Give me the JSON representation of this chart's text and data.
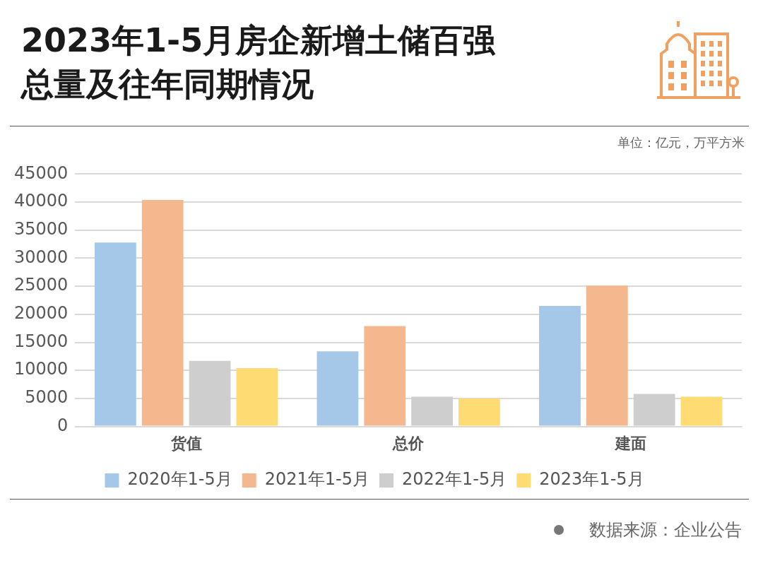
{
  "chart_data": {
    "type": "bar",
    "title": "2023年1-5月房企新增土储百强总量及往年同期情况",
    "categories": [
      "货值",
      "总价",
      "建面"
    ],
    "series": [
      {
        "name": "2020年1-5月",
        "color": "#a5c8e8",
        "values": [
          32800,
          13400,
          21500
        ]
      },
      {
        "name": "2021年1-5月",
        "color": "#f5b88e",
        "values": [
          40400,
          17900,
          25100
        ]
      },
      {
        "name": "2022年1-5月",
        "color": "#cecece",
        "values": [
          11700,
          5300,
          5800
        ]
      },
      {
        "name": "2023年1-5月",
        "color": "#ffdc73",
        "values": [
          10400,
          5000,
          5300
        ]
      }
    ],
    "ylim": [
      0,
      45000
    ],
    "yticks": [
      0,
      5000,
      10000,
      15000,
      20000,
      25000,
      30000,
      35000,
      40000,
      45000
    ],
    "grid": "y",
    "legend": "bottom",
    "annotations": [
      "单位：亿元，万平方米",
      "数据来源：企业公告"
    ]
  }
}
